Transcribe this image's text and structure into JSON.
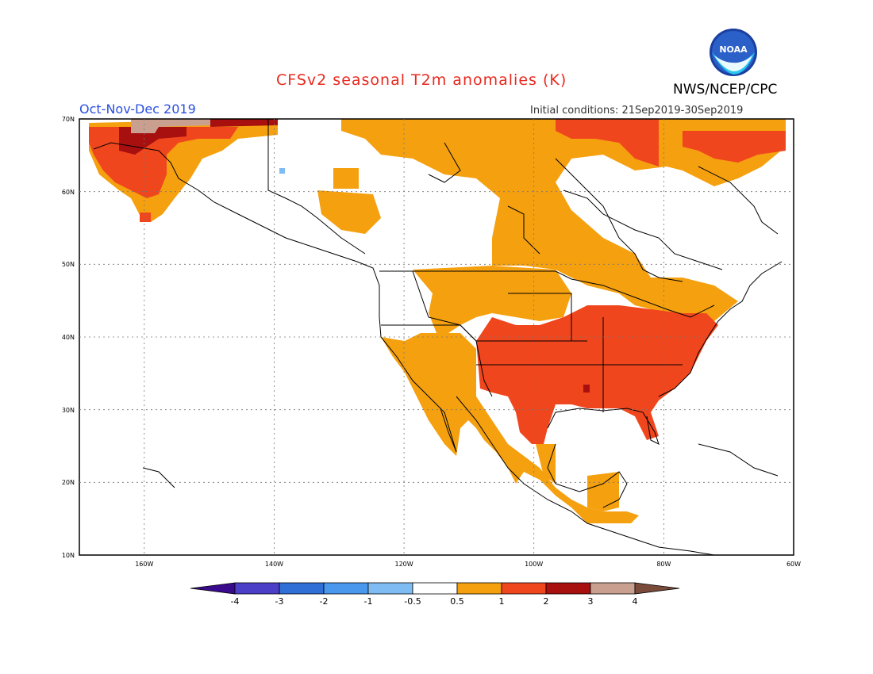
{
  "header": {
    "title": "CFSv2 seasonal T2m anomalies (K)",
    "agency": "NWS/NCEP/CPC",
    "logo_text": "NOAA",
    "period": "Oct-Nov-Dec 2019",
    "initial_conditions": "Initial conditions: 21Sep2019-30Sep2019"
  },
  "map": {
    "lat_labels": [
      "70N",
      "60N",
      "50N",
      "40N",
      "30N",
      "20N",
      "10N"
    ],
    "lon_labels": [
      "160W",
      "140W",
      "120W",
      "100W",
      "80W",
      "60W"
    ],
    "lat_range": [
      10,
      70
    ],
    "lon_range": [
      -170,
      -60
    ]
  },
  "colorbar": {
    "labels": [
      "-4",
      "-3",
      "-2",
      "-1",
      "-0.5",
      "0.5",
      "1",
      "2",
      "3",
      "4"
    ],
    "colors": [
      "#3a0a8c",
      "#4b3fc8",
      "#2f6fd6",
      "#4a97ee",
      "#7fbcf4",
      "#ffffff",
      "#f5a00f",
      "#f0461e",
      "#a80f0f",
      "#c9a090",
      "#7a4a3a"
    ]
  },
  "colors": {
    "light_anomaly": "#f5a00f",
    "medium_anomaly": "#f0461e",
    "strong_anomaly": "#a80f0f",
    "extreme_anomaly": "#c9a090",
    "cool_anomaly": "#7fbcf4"
  }
}
